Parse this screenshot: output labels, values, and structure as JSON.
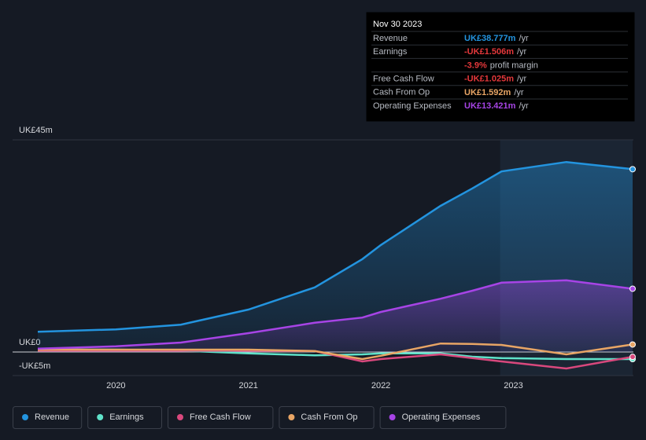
{
  "chart_data": {
    "type": "line",
    "x": [
      2019.41,
      2020.0,
      2020.49,
      2021.0,
      2021.5,
      2021.86,
      2022.0,
      2022.45,
      2022.69,
      2022.91,
      2023.4,
      2023.9
    ],
    "xlim": [
      2019.22,
      2023.9
    ],
    "xticks": [
      2020,
      2021,
      2022,
      2023
    ],
    "ylim": [
      -5,
      45
    ],
    "yticks": [
      {
        "value": 45,
        "label": "UK£45m"
      },
      {
        "value": 0,
        "label": "UK£0"
      },
      {
        "value": -5,
        "label": "-UK£5m"
      }
    ],
    "series": [
      {
        "name": "Revenue",
        "color": "#2394df",
        "fill": true,
        "values": [
          4.3,
          4.8,
          5.8,
          9.0,
          13.7,
          19.7,
          22.7,
          31.0,
          34.7,
          38.3,
          40.3,
          38.777
        ]
      },
      {
        "name": "Earnings",
        "color": "#5fe2c9",
        "fill": false,
        "values": [
          0.5,
          0.5,
          0.3,
          -0.3,
          -0.7,
          -0.5,
          -0.3,
          -0.3,
          -1.0,
          -1.3,
          -1.5,
          -1.506
        ]
      },
      {
        "name": "Free Cash Flow",
        "color": "#d9487d",
        "fill": false,
        "values": [
          0.3,
          0.3,
          0.3,
          0.3,
          0.2,
          -2.0,
          -1.5,
          -0.5,
          -1.3,
          -2.0,
          -3.5,
          -1.025
        ]
      },
      {
        "name": "Cash From Op",
        "color": "#e8a565",
        "fill": false,
        "values": [
          0.5,
          0.5,
          0.5,
          0.5,
          0.2,
          -1.5,
          -0.8,
          1.8,
          1.7,
          1.5,
          -0.5,
          1.592
        ]
      },
      {
        "name": "Operating Expenses",
        "color": "#a744e6",
        "fill": true,
        "values": [
          0.7,
          1.2,
          2.0,
          4.0,
          6.2,
          7.3,
          8.5,
          11.3,
          13.0,
          14.7,
          15.2,
          13.421
        ]
      }
    ],
    "tooltip": {
      "date": "Nov 30 2023",
      "rows": [
        {
          "label": "Revenue",
          "value": "UK£38.777m",
          "unit": "/yr",
          "color": "#2394df"
        },
        {
          "label": "Earnings",
          "value": "-UK£1.506m",
          "unit": "/yr",
          "color": "#e5383b"
        },
        {
          "label": "",
          "value": "-3.9%",
          "unit": "profit margin",
          "color": "#e5383b"
        },
        {
          "label": "Free Cash Flow",
          "value": "-UK£1.025m",
          "unit": "/yr",
          "color": "#e5383b"
        },
        {
          "label": "Cash From Op",
          "value": "UK£1.592m",
          "unit": "/yr",
          "color": "#e8a565"
        },
        {
          "label": "Operating Expenses",
          "value": "UK£13.421m",
          "unit": "/yr",
          "color": "#a744e6"
        }
      ]
    }
  }
}
